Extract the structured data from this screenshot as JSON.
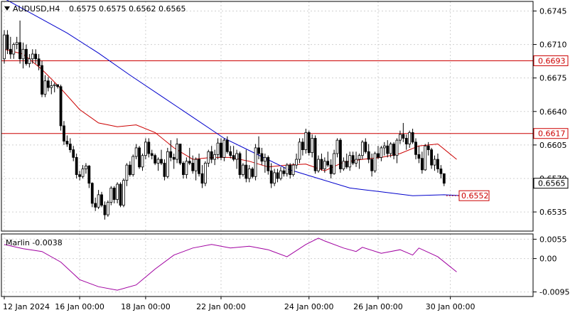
{
  "header": {
    "symbol": "AUDUSD,H4",
    "ohlc": "0.6575 0.6575 0.6562 0.6565"
  },
  "indicator": {
    "label": "Marlin -0.0038"
  },
  "colors": {
    "bull": "#ffffff",
    "bear": "#000000",
    "wick": "#000000",
    "ma_fast": "#cc0000",
    "ma_slow": "#0000cc",
    "levels": "#cc0000",
    "osc": "#a000a0",
    "grid": "#d0d0d0",
    "price_box": "#000000"
  },
  "chart_data": [
    {
      "type": "candlestick",
      "title": "AUDUSD,H4",
      "ylim": [
        0.6515,
        0.6755
      ],
      "y_ticks": [
        "0.6745",
        "0.6710",
        "0.6675",
        "0.6640",
        "0.6605",
        "0.6570",
        "0.6535"
      ],
      "x_tick_labels": [
        "12 Jan 2024",
        "16 Jan 00:00",
        "18 Jan 00:00",
        "22 Jan 00:00",
        "24 Jan 00:00",
        "26 Jan 00:00",
        "30 Jan 00:00"
      ],
      "x_tick_index": [
        0,
        24,
        45,
        69,
        97,
        119,
        142
      ],
      "current_price": "0.6565",
      "horizontal_levels": [
        {
          "value": 0.6693,
          "label": "0.6693"
        },
        {
          "value": 0.6617,
          "label": "0.6617"
        }
      ],
      "annotation": {
        "value": 0.6552,
        "label": "0.6552"
      },
      "candles": [
        [
          0.6695,
          0.6725,
          0.669,
          0.672
        ],
        [
          0.672,
          0.6725,
          0.67,
          0.6705
        ],
        [
          0.6705,
          0.6718,
          0.6695,
          0.67
        ],
        [
          0.67,
          0.6712,
          0.6695,
          0.671
        ],
        [
          0.671,
          0.6718,
          0.6705,
          0.6712
        ],
        [
          0.6712,
          0.6735,
          0.669,
          0.6695
        ],
        [
          0.6695,
          0.6712,
          0.6685,
          0.6705
        ],
        [
          0.6705,
          0.671,
          0.6688,
          0.669
        ],
        [
          0.669,
          0.67,
          0.6686,
          0.6695
        ],
        [
          0.6695,
          0.6705,
          0.669,
          0.67
        ],
        [
          0.67,
          0.6705,
          0.669,
          0.6695
        ],
        [
          0.6695,
          0.67,
          0.6683,
          0.6688
        ],
        [
          0.6688,
          0.6693,
          0.6655,
          0.6658
        ],
        [
          0.6658,
          0.6678,
          0.6655,
          0.6672
        ],
        [
          0.6672,
          0.6676,
          0.6661,
          0.6665
        ],
        [
          0.6665,
          0.6672,
          0.6658,
          0.6667
        ],
        [
          0.6667,
          0.667,
          0.666,
          0.6668
        ],
        [
          0.6668,
          0.6668,
          0.6664,
          0.6666
        ],
        [
          0.6666,
          0.6668,
          0.662,
          0.6625
        ],
        [
          0.6625,
          0.663,
          0.6605,
          0.6609
        ],
        [
          0.6609,
          0.6615,
          0.6603,
          0.6606
        ],
        [
          0.6606,
          0.6612,
          0.6597,
          0.66
        ],
        [
          0.66,
          0.6604,
          0.6588,
          0.6592
        ],
        [
          0.6592,
          0.6596,
          0.657,
          0.6574
        ],
        [
          0.6574,
          0.6578,
          0.6568,
          0.6572
        ],
        [
          0.6572,
          0.6584,
          0.657,
          0.658
        ],
        [
          0.658,
          0.6586,
          0.6575,
          0.6583
        ],
        [
          0.6583,
          0.6584,
          0.656,
          0.6565
        ],
        [
          0.6565,
          0.6566,
          0.654,
          0.6544
        ],
        [
          0.6544,
          0.655,
          0.6536,
          0.654
        ],
        [
          0.654,
          0.6558,
          0.6538,
          0.6553
        ],
        [
          0.6553,
          0.6556,
          0.654,
          0.6542
        ],
        [
          0.6542,
          0.6546,
          0.6527,
          0.6532
        ],
        [
          0.6532,
          0.6547,
          0.653,
          0.6545
        ],
        [
          0.6545,
          0.6562,
          0.6542,
          0.656
        ],
        [
          0.656,
          0.6562,
          0.6544,
          0.6548
        ],
        [
          0.6548,
          0.6566,
          0.6544,
          0.6564
        ],
        [
          0.6564,
          0.6566,
          0.654,
          0.6542
        ],
        [
          0.6542,
          0.657,
          0.654,
          0.6568
        ],
        [
          0.6568,
          0.6586,
          0.6562,
          0.6584
        ],
        [
          0.6584,
          0.6588,
          0.6572,
          0.6574
        ],
        [
          0.6574,
          0.6595,
          0.6572,
          0.6593
        ],
        [
          0.6593,
          0.6606,
          0.659,
          0.6602
        ],
        [
          0.6602,
          0.6604,
          0.658,
          0.6582
        ],
        [
          0.6582,
          0.6596,
          0.6578,
          0.6594
        ],
        [
          0.6594,
          0.6612,
          0.659,
          0.6608
        ],
        [
          0.6608,
          0.6612,
          0.6592,
          0.6596
        ],
        [
          0.6596,
          0.66,
          0.659,
          0.6594
        ],
        [
          0.6594,
          0.6596,
          0.6584,
          0.6586
        ],
        [
          0.6586,
          0.6592,
          0.6578,
          0.659
        ],
        [
          0.659,
          0.66,
          0.6584,
          0.6586
        ],
        [
          0.6586,
          0.659,
          0.6568,
          0.6572
        ],
        [
          0.6572,
          0.6602,
          0.657,
          0.6598
        ],
        [
          0.6598,
          0.661,
          0.6588,
          0.6592
        ],
        [
          0.6592,
          0.6596,
          0.658,
          0.659
        ],
        [
          0.659,
          0.6612,
          0.6586,
          0.6606
        ],
        [
          0.6606,
          0.6606,
          0.6584,
          0.6586
        ],
        [
          0.6586,
          0.6588,
          0.657,
          0.6574
        ],
        [
          0.6574,
          0.6592,
          0.657,
          0.6588
        ],
        [
          0.6588,
          0.6602,
          0.6584,
          0.6586
        ],
        [
          0.6586,
          0.6594,
          0.6575,
          0.6578
        ],
        [
          0.6578,
          0.6592,
          0.6568,
          0.659
        ],
        [
          0.659,
          0.6596,
          0.6572,
          0.6575
        ],
        [
          0.6575,
          0.6584,
          0.656,
          0.6565
        ],
        [
          0.6565,
          0.6588,
          0.6562,
          0.6586
        ],
        [
          0.6586,
          0.66,
          0.6582,
          0.6598
        ],
        [
          0.6598,
          0.6604,
          0.6586,
          0.659
        ],
        [
          0.659,
          0.66,
          0.6584,
          0.6595
        ],
        [
          0.6595,
          0.6612,
          0.659,
          0.6607
        ],
        [
          0.6607,
          0.6612,
          0.6589,
          0.6592
        ],
        [
          0.6592,
          0.6612,
          0.6588,
          0.661
        ],
        [
          0.661,
          0.6614,
          0.6596,
          0.6598
        ],
        [
          0.6598,
          0.6604,
          0.6591,
          0.6594
        ],
        [
          0.6594,
          0.6604,
          0.6588,
          0.659
        ],
        [
          0.659,
          0.66,
          0.658,
          0.6596
        ],
        [
          0.6596,
          0.6598,
          0.657,
          0.6574
        ],
        [
          0.6574,
          0.6586,
          0.6572,
          0.6584
        ],
        [
          0.6584,
          0.66,
          0.6566,
          0.657
        ],
        [
          0.657,
          0.6584,
          0.6566,
          0.658
        ],
        [
          0.658,
          0.6582,
          0.657,
          0.6572
        ],
        [
          0.6572,
          0.6606,
          0.6568,
          0.6602
        ],
        [
          0.6602,
          0.6614,
          0.659,
          0.6596
        ],
        [
          0.6596,
          0.6602,
          0.6584,
          0.6588
        ],
        [
          0.6588,
          0.6596,
          0.6576,
          0.6592
        ],
        [
          0.6592,
          0.6594,
          0.6574,
          0.6578
        ],
        [
          0.6578,
          0.6586,
          0.656,
          0.6565
        ],
        [
          0.6565,
          0.658,
          0.6562,
          0.6576
        ],
        [
          0.6576,
          0.658,
          0.6566,
          0.657
        ],
        [
          0.657,
          0.6582,
          0.6568,
          0.6578
        ],
        [
          0.6578,
          0.6582,
          0.6572,
          0.6575
        ],
        [
          0.6575,
          0.6586,
          0.6572,
          0.6584
        ],
        [
          0.6584,
          0.6586,
          0.657,
          0.6574
        ],
        [
          0.6574,
          0.6586,
          0.6572,
          0.6584
        ],
        [
          0.6584,
          0.6596,
          0.658,
          0.659
        ],
        [
          0.659,
          0.6612,
          0.6586,
          0.6608
        ],
        [
          0.6608,
          0.6612,
          0.6594,
          0.66
        ],
        [
          0.66,
          0.6622,
          0.6596,
          0.6618
        ],
        [
          0.6618,
          0.662,
          0.6594,
          0.6597
        ],
        [
          0.6597,
          0.6616,
          0.6592,
          0.6612
        ],
        [
          0.6612,
          0.6615,
          0.6575,
          0.6578
        ],
        [
          0.6578,
          0.6594,
          0.6576,
          0.659
        ],
        [
          0.659,
          0.6596,
          0.6578,
          0.658
        ],
        [
          0.658,
          0.6592,
          0.6576,
          0.6588
        ],
        [
          0.6588,
          0.6598,
          0.6582,
          0.6584
        ],
        [
          0.6584,
          0.659,
          0.657,
          0.6575
        ],
        [
          0.6575,
          0.66,
          0.6574,
          0.6596
        ],
        [
          0.6596,
          0.6612,
          0.6592,
          0.661
        ],
        [
          0.661,
          0.6612,
          0.6576,
          0.658
        ],
        [
          0.658,
          0.6592,
          0.6578,
          0.6588
        ],
        [
          0.6588,
          0.6596,
          0.658,
          0.6582
        ],
        [
          0.6582,
          0.6598,
          0.6578,
          0.6594
        ],
        [
          0.6594,
          0.6598,
          0.6584,
          0.6586
        ],
        [
          0.6586,
          0.6598,
          0.6582,
          0.659
        ],
        [
          0.659,
          0.6596,
          0.658,
          0.6594
        ],
        [
          0.6594,
          0.661,
          0.659,
          0.6608
        ],
        [
          0.6608,
          0.6612,
          0.6596,
          0.6598
        ],
        [
          0.6598,
          0.6606,
          0.6586,
          0.659
        ],
        [
          0.659,
          0.6596,
          0.6572,
          0.6578
        ],
        [
          0.6578,
          0.6598,
          0.6576,
          0.6596
        ],
        [
          0.6596,
          0.6604,
          0.659,
          0.6592
        ],
        [
          0.6592,
          0.6604,
          0.6588,
          0.6602
        ],
        [
          0.6602,
          0.6608,
          0.6594,
          0.6604
        ],
        [
          0.6604,
          0.661,
          0.6592,
          0.6596
        ],
        [
          0.6596,
          0.6608,
          0.6592,
          0.6606
        ],
        [
          0.6606,
          0.6608,
          0.659,
          0.6594
        ],
        [
          0.6594,
          0.6612,
          0.6586,
          0.661
        ],
        [
          0.661,
          0.662,
          0.6606,
          0.6616
        ],
        [
          0.6616,
          0.6628,
          0.6608,
          0.6612
        ],
        [
          0.6612,
          0.6616,
          0.66,
          0.6606
        ],
        [
          0.6606,
          0.662,
          0.6602,
          0.6618
        ],
        [
          0.6618,
          0.6622,
          0.6606,
          0.6608
        ],
        [
          0.6608,
          0.6612,
          0.659,
          0.6595
        ],
        [
          0.6595,
          0.6604,
          0.6586,
          0.6591
        ],
        [
          0.6591,
          0.6598,
          0.6575,
          0.6579
        ],
        [
          0.6579,
          0.6606,
          0.6578,
          0.6604
        ],
        [
          0.6604,
          0.6608,
          0.6594,
          0.66
        ],
        [
          0.66,
          0.6602,
          0.658,
          0.6584
        ],
        [
          0.6584,
          0.6594,
          0.6578,
          0.659
        ],
        [
          0.659,
          0.6596,
          0.6576,
          0.658
        ],
        [
          0.658,
          0.6584,
          0.657,
          0.6575
        ],
        [
          0.6575,
          0.6575,
          0.6562,
          0.6565
        ]
      ],
      "series": [
        {
          "name": "",
          "type": "line",
          "x": [
            0,
            6,
            12,
            18,
            24,
            30,
            36,
            42,
            48,
            54,
            60,
            66,
            72,
            78,
            84,
            90,
            96,
            102,
            108,
            114,
            120,
            126,
            132,
            138,
            144
          ],
          "values": [
            0.6705,
            0.67,
            0.6684,
            0.6664,
            0.6642,
            0.6628,
            0.6624,
            0.6626,
            0.6618,
            0.6602,
            0.659,
            0.6592,
            0.6592,
            0.6588,
            0.6582,
            0.6584,
            0.6585,
            0.6578,
            0.6587,
            0.659,
            0.6592,
            0.6596,
            0.6604,
            0.6606,
            0.659
          ]
        },
        {
          "name": "",
          "type": "line",
          "x": [
            0,
            10,
            20,
            30,
            40,
            50,
            60,
            70,
            80,
            90,
            100,
            110,
            120,
            130,
            140,
            146
          ],
          "values": [
            0.6758,
            0.674,
            0.6722,
            0.6701,
            0.6678,
            0.6656,
            0.6634,
            0.6612,
            0.6596,
            0.658,
            0.657,
            0.656,
            0.6556,
            0.6552,
            0.6553,
            0.6552
          ]
        }
      ]
    },
    {
      "type": "line",
      "title": "Marlin -0.0038",
      "ylim": [
        -0.0108,
        0.007
      ],
      "y_ticks": [
        "0.0055",
        "0.00",
        "-0.0095"
      ],
      "x": [
        0,
        6,
        12,
        18,
        24,
        30,
        36,
        42,
        48,
        54,
        60,
        66,
        72,
        78,
        84,
        90,
        96,
        100,
        102,
        108,
        112,
        114,
        120,
        126,
        130,
        132,
        138,
        144
      ],
      "values": [
        0.004,
        0.0028,
        0.002,
        -0.001,
        -0.006,
        -0.008,
        -0.009,
        -0.0075,
        -0.003,
        0.001,
        0.003,
        0.004,
        0.003,
        0.0035,
        0.0025,
        0.0005,
        0.004,
        0.0058,
        0.005,
        0.003,
        0.002,
        0.0032,
        0.0015,
        0.0025,
        0.001,
        0.003,
        0.0005,
        -0.0038
      ]
    }
  ]
}
